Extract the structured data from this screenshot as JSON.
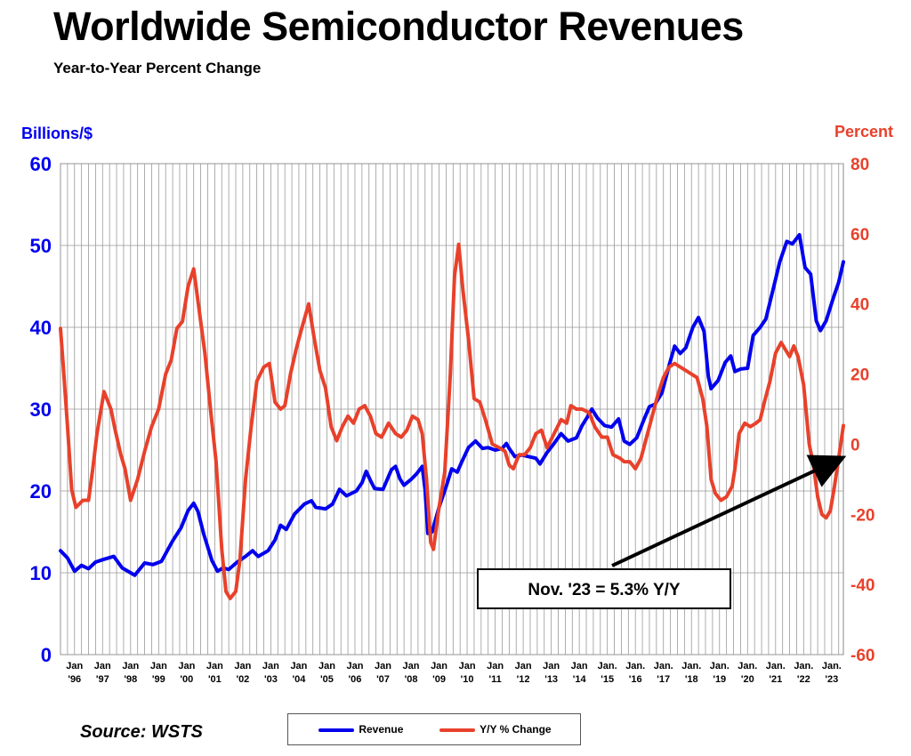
{
  "header": {
    "title": "Worldwide Semiconductor Revenues",
    "subtitle": "Year-to-Year Percent Change"
  },
  "source": "Source: WSTS",
  "callout": "Nov. '23 = 5.3% Y/Y",
  "legend": {
    "revenue": "Revenue",
    "yoy": "Y/Y % Change"
  },
  "colors": {
    "revenue": "#0000ee",
    "yoy": "#e8412b",
    "grid": "#999999"
  },
  "chart_data": {
    "type": "line",
    "y_left": {
      "label": "Billions/$",
      "min": 0,
      "max": 60,
      "ticks": [
        "0",
        "10",
        "20",
        "30",
        "40",
        "50",
        "60"
      ]
    },
    "y_right": {
      "label": "Percent",
      "min": -60,
      "max": 80,
      "ticks": [
        "-60",
        "-40",
        "-20",
        "0",
        "20",
        "40",
        "60",
        "80"
      ]
    },
    "x_range": [
      1996.0,
      2023.917
    ],
    "x_ticks": [
      {
        "x": 1996,
        "l1": "Jan",
        "l2": "'96"
      },
      {
        "x": 1997,
        "l1": "Jan",
        "l2": "'97"
      },
      {
        "x": 1998,
        "l1": "Jan",
        "l2": "'98"
      },
      {
        "x": 1999,
        "l1": "Jan",
        "l2": "'99"
      },
      {
        "x": 2000,
        "l1": "Jan",
        "l2": "'00"
      },
      {
        "x": 2001,
        "l1": "Jan",
        "l2": "'01"
      },
      {
        "x": 2002,
        "l1": "Jan",
        "l2": "'02"
      },
      {
        "x": 2003,
        "l1": "Jan",
        "l2": "'03"
      },
      {
        "x": 2004,
        "l1": "Jan",
        "l2": "'04"
      },
      {
        "x": 2005,
        "l1": "Jan",
        "l2": "'05"
      },
      {
        "x": 2006,
        "l1": "Jan",
        "l2": "'06"
      },
      {
        "x": 2007,
        "l1": "Jan",
        "l2": "'07"
      },
      {
        "x": 2008,
        "l1": "Jan",
        "l2": "'08"
      },
      {
        "x": 2009,
        "l1": "Jan",
        "l2": "'09"
      },
      {
        "x": 2010,
        "l1": "Jan",
        "l2": "'10"
      },
      {
        "x": 2011,
        "l1": "Jan",
        "l2": "'11"
      },
      {
        "x": 2012,
        "l1": "Jan",
        "l2": "'12"
      },
      {
        "x": 2013,
        "l1": "Jan",
        "l2": "'13"
      },
      {
        "x": 2014,
        "l1": "Jan",
        "l2": "'14"
      },
      {
        "x": 2015,
        "l1": "Jan.",
        "l2": "'15"
      },
      {
        "x": 2016,
        "l1": "Jan.",
        "l2": "'16"
      },
      {
        "x": 2017,
        "l1": "Jan.",
        "l2": "'17"
      },
      {
        "x": 2018,
        "l1": "Jan.",
        "l2": "'18"
      },
      {
        "x": 2019,
        "l1": "Jan.",
        "l2": "'19"
      },
      {
        "x": 2020,
        "l1": "Jan.",
        "l2": "'20"
      },
      {
        "x": 2021,
        "l1": "Jan.",
        "l2": "'21"
      },
      {
        "x": 2022,
        "l1": "Jan.",
        "l2": "'22"
      },
      {
        "x": 2023,
        "l1": "Jan.",
        "l2": "'23"
      }
    ],
    "series": [
      {
        "name": "Revenue",
        "axis": "left",
        "points": [
          [
            1996.0,
            12.7
          ],
          [
            1996.25,
            11.8
          ],
          [
            1996.5,
            10.2
          ],
          [
            1996.75,
            10.9
          ],
          [
            1997.0,
            10.5
          ],
          [
            1997.25,
            11.3
          ],
          [
            1997.5,
            11.6
          ],
          [
            1997.9,
            12.0
          ],
          [
            1998.2,
            10.6
          ],
          [
            1998.5,
            10.0
          ],
          [
            1998.65,
            9.7
          ],
          [
            1999.0,
            11.2
          ],
          [
            1999.3,
            11.0
          ],
          [
            1999.6,
            11.4
          ],
          [
            2000.0,
            13.9
          ],
          [
            2000.3,
            15.5
          ],
          [
            2000.55,
            17.6
          ],
          [
            2000.75,
            18.5
          ],
          [
            2000.9,
            17.5
          ],
          [
            2001.1,
            14.8
          ],
          [
            2001.4,
            11.5
          ],
          [
            2001.6,
            10.2
          ],
          [
            2001.8,
            10.6
          ],
          [
            2002.0,
            10.4
          ],
          [
            2002.3,
            11.3
          ],
          [
            2002.6,
            12.0
          ],
          [
            2002.85,
            12.7
          ],
          [
            2003.05,
            12.0
          ],
          [
            2003.4,
            12.7
          ],
          [
            2003.65,
            14.0
          ],
          [
            2003.85,
            15.8
          ],
          [
            2004.05,
            15.3
          ],
          [
            2004.35,
            17.2
          ],
          [
            2004.7,
            18.4
          ],
          [
            2004.95,
            18.8
          ],
          [
            2005.1,
            18.0
          ],
          [
            2005.45,
            17.8
          ],
          [
            2005.7,
            18.4
          ],
          [
            2005.95,
            20.2
          ],
          [
            2006.2,
            19.4
          ],
          [
            2006.55,
            20.0
          ],
          [
            2006.75,
            21.0
          ],
          [
            2006.9,
            22.4
          ],
          [
            2007.05,
            21.3
          ],
          [
            2007.2,
            20.3
          ],
          [
            2007.5,
            20.2
          ],
          [
            2007.8,
            22.6
          ],
          [
            2007.95,
            23.0
          ],
          [
            2008.1,
            21.5
          ],
          [
            2008.25,
            20.7
          ],
          [
            2008.5,
            21.4
          ],
          [
            2008.7,
            22.1
          ],
          [
            2008.9,
            23.0
          ],
          [
            2009.0,
            20.2
          ],
          [
            2009.1,
            14.8
          ],
          [
            2009.25,
            15.0
          ],
          [
            2009.5,
            18.0
          ],
          [
            2009.75,
            20.5
          ],
          [
            2009.95,
            22.7
          ],
          [
            2010.15,
            22.3
          ],
          [
            2010.3,
            23.5
          ],
          [
            2010.55,
            25.3
          ],
          [
            2010.8,
            26.1
          ],
          [
            2011.05,
            25.2
          ],
          [
            2011.25,
            25.3
          ],
          [
            2011.5,
            25.0
          ],
          [
            2011.75,
            25.2
          ],
          [
            2011.9,
            25.8
          ],
          [
            2012.0,
            25.2
          ],
          [
            2012.2,
            24.2
          ],
          [
            2012.45,
            24.4
          ],
          [
            2012.7,
            24.2
          ],
          [
            2012.95,
            24.0
          ],
          [
            2013.1,
            23.3
          ],
          [
            2013.35,
            24.7
          ],
          [
            2013.6,
            25.8
          ],
          [
            2013.85,
            27.0
          ],
          [
            2014.1,
            26.1
          ],
          [
            2014.4,
            26.5
          ],
          [
            2014.6,
            28.0
          ],
          [
            2014.8,
            29.1
          ],
          [
            2014.95,
            30.0
          ],
          [
            2015.15,
            28.9
          ],
          [
            2015.4,
            28.0
          ],
          [
            2015.65,
            27.8
          ],
          [
            2015.9,
            28.8
          ],
          [
            2016.1,
            26.1
          ],
          [
            2016.3,
            25.7
          ],
          [
            2016.55,
            26.5
          ],
          [
            2016.8,
            28.7
          ],
          [
            2017.0,
            30.3
          ],
          [
            2017.2,
            30.6
          ],
          [
            2017.45,
            32.0
          ],
          [
            2017.7,
            35.3
          ],
          [
            2017.9,
            37.7
          ],
          [
            2018.1,
            36.8
          ],
          [
            2018.3,
            37.5
          ],
          [
            2018.55,
            40.0
          ],
          [
            2018.75,
            41.2
          ],
          [
            2018.95,
            39.5
          ],
          [
            2019.1,
            34.0
          ],
          [
            2019.2,
            32.5
          ],
          [
            2019.45,
            33.5
          ],
          [
            2019.7,
            35.7
          ],
          [
            2019.9,
            36.5
          ],
          [
            2020.05,
            34.6
          ],
          [
            2020.25,
            34.9
          ],
          [
            2020.5,
            35.0
          ],
          [
            2020.7,
            39.0
          ],
          [
            2020.95,
            40.0
          ],
          [
            2021.15,
            41.0
          ],
          [
            2021.4,
            44.5
          ],
          [
            2021.65,
            48.0
          ],
          [
            2021.9,
            50.5
          ],
          [
            2022.1,
            50.2
          ],
          [
            2022.35,
            51.3
          ],
          [
            2022.55,
            47.3
          ],
          [
            2022.75,
            46.5
          ],
          [
            2022.95,
            40.8
          ],
          [
            2023.1,
            39.6
          ],
          [
            2023.3,
            40.8
          ],
          [
            2023.55,
            43.5
          ],
          [
            2023.75,
            45.5
          ],
          [
            2023.917,
            48.0
          ]
        ]
      },
      {
        "name": "Y/Y % Change",
        "axis": "right",
        "points": [
          [
            1996.0,
            33
          ],
          [
            1996.1,
            22
          ],
          [
            1996.25,
            5
          ],
          [
            1996.4,
            -13
          ],
          [
            1996.55,
            -18
          ],
          [
            1996.8,
            -16
          ],
          [
            1997.0,
            -16
          ],
          [
            1997.15,
            -7
          ],
          [
            1997.3,
            3
          ],
          [
            1997.55,
            15
          ],
          [
            1997.8,
            10
          ],
          [
            1997.95,
            4
          ],
          [
            1998.15,
            -3
          ],
          [
            1998.3,
            -7
          ],
          [
            1998.5,
            -16
          ],
          [
            1998.75,
            -10
          ],
          [
            1999.0,
            -2
          ],
          [
            1999.25,
            5
          ],
          [
            1999.5,
            10
          ],
          [
            1999.75,
            20
          ],
          [
            1999.95,
            24
          ],
          [
            2000.15,
            33
          ],
          [
            2000.35,
            35
          ],
          [
            2000.55,
            45
          ],
          [
            2000.75,
            50
          ],
          [
            2000.95,
            38
          ],
          [
            2001.15,
            26
          ],
          [
            2001.35,
            10
          ],
          [
            2001.55,
            -5
          ],
          [
            2001.75,
            -30
          ],
          [
            2001.9,
            -42
          ],
          [
            2002.05,
            -44
          ],
          [
            2002.25,
            -42
          ],
          [
            2002.4,
            -33
          ],
          [
            2002.6,
            -10
          ],
          [
            2002.8,
            5
          ],
          [
            2003.0,
            18
          ],
          [
            2003.25,
            22
          ],
          [
            2003.45,
            23
          ],
          [
            2003.65,
            12
          ],
          [
            2003.85,
            10
          ],
          [
            2004.0,
            11
          ],
          [
            2004.2,
            20
          ],
          [
            2004.4,
            27
          ],
          [
            2004.6,
            33
          ],
          [
            2004.85,
            40
          ],
          [
            2005.05,
            30
          ],
          [
            2005.25,
            21
          ],
          [
            2005.45,
            16
          ],
          [
            2005.65,
            5
          ],
          [
            2005.85,
            1
          ],
          [
            2006.05,
            5
          ],
          [
            2006.25,
            8
          ],
          [
            2006.45,
            6
          ],
          [
            2006.65,
            10
          ],
          [
            2006.85,
            11
          ],
          [
            2007.05,
            8
          ],
          [
            2007.25,
            3
          ],
          [
            2007.45,
            2
          ],
          [
            2007.7,
            6
          ],
          [
            2007.95,
            3
          ],
          [
            2008.15,
            2
          ],
          [
            2008.35,
            4
          ],
          [
            2008.55,
            8
          ],
          [
            2008.75,
            7
          ],
          [
            2008.9,
            3
          ],
          [
            2009.05,
            -10
          ],
          [
            2009.2,
            -28
          ],
          [
            2009.3,
            -30
          ],
          [
            2009.5,
            -18
          ],
          [
            2009.7,
            -8
          ],
          [
            2009.9,
            20
          ],
          [
            2010.05,
            48
          ],
          [
            2010.2,
            57
          ],
          [
            2010.35,
            44
          ],
          [
            2010.55,
            30
          ],
          [
            2010.75,
            13
          ],
          [
            2010.95,
            12
          ],
          [
            2011.15,
            7
          ],
          [
            2011.4,
            0
          ],
          [
            2011.65,
            -1
          ],
          [
            2011.85,
            -2
          ],
          [
            2012.0,
            -6
          ],
          [
            2012.15,
            -7
          ],
          [
            2012.35,
            -3
          ],
          [
            2012.55,
            -3
          ],
          [
            2012.75,
            -1
          ],
          [
            2012.95,
            3
          ],
          [
            2013.15,
            4
          ],
          [
            2013.35,
            -1
          ],
          [
            2013.6,
            3
          ],
          [
            2013.85,
            7
          ],
          [
            2014.05,
            6
          ],
          [
            2014.2,
            11
          ],
          [
            2014.4,
            10
          ],
          [
            2014.6,
            10
          ],
          [
            2014.85,
            9
          ],
          [
            2015.05,
            5
          ],
          [
            2015.3,
            2
          ],
          [
            2015.5,
            2
          ],
          [
            2015.7,
            -3
          ],
          [
            2015.95,
            -4
          ],
          [
            2016.1,
            -5
          ],
          [
            2016.3,
            -5
          ],
          [
            2016.5,
            -7
          ],
          [
            2016.7,
            -4
          ],
          [
            2016.9,
            2
          ],
          [
            2017.1,
            8
          ],
          [
            2017.3,
            14
          ],
          [
            2017.5,
            19
          ],
          [
            2017.7,
            22
          ],
          [
            2017.9,
            23
          ],
          [
            2018.1,
            22
          ],
          [
            2018.3,
            21
          ],
          [
            2018.5,
            20
          ],
          [
            2018.7,
            19
          ],
          [
            2018.9,
            13
          ],
          [
            2019.05,
            5
          ],
          [
            2019.2,
            -10
          ],
          [
            2019.35,
            -14
          ],
          [
            2019.55,
            -16
          ],
          [
            2019.75,
            -15
          ],
          [
            2019.95,
            -12
          ],
          [
            2020.05,
            -7
          ],
          [
            2020.2,
            3
          ],
          [
            2020.4,
            6
          ],
          [
            2020.6,
            5
          ],
          [
            2020.8,
            6
          ],
          [
            2020.95,
            7
          ],
          [
            2021.1,
            12
          ],
          [
            2021.3,
            18
          ],
          [
            2021.5,
            26
          ],
          [
            2021.7,
            29
          ],
          [
            2021.85,
            27
          ],
          [
            2022.0,
            25
          ],
          [
            2022.15,
            28
          ],
          [
            2022.3,
            25
          ],
          [
            2022.5,
            17
          ],
          [
            2022.7,
            0
          ],
          [
            2022.85,
            -6
          ],
          [
            2023.0,
            -15
          ],
          [
            2023.15,
            -20
          ],
          [
            2023.3,
            -21
          ],
          [
            2023.45,
            -19
          ],
          [
            2023.6,
            -12
          ],
          [
            2023.75,
            -4
          ],
          [
            2023.917,
            5.3
          ]
        ]
      }
    ]
  }
}
